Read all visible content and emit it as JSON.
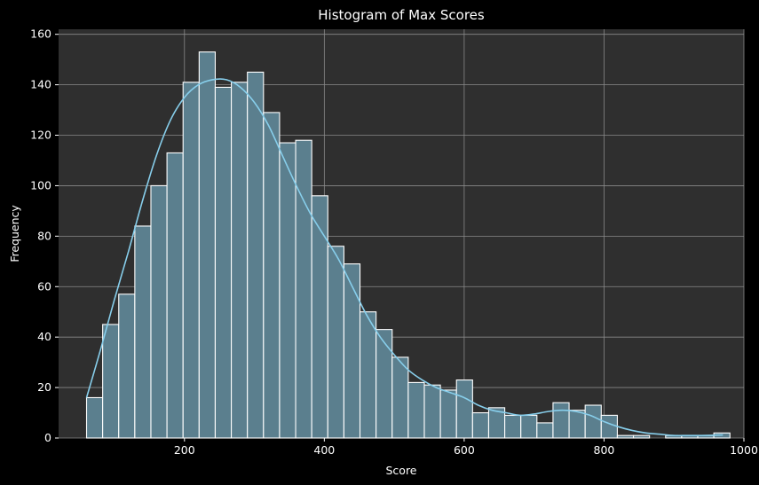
{
  "chart_data": {
    "type": "bar",
    "title": "Histogram of Max Scores",
    "xlabel": "Score",
    "ylabel": "Frequency",
    "xlim": [
      20,
      1000
    ],
    "ylim": [
      0,
      162
    ],
    "x_ticks": [
      200,
      400,
      600,
      800,
      1000
    ],
    "y_ticks": [
      0,
      20,
      40,
      60,
      80,
      100,
      120,
      140,
      160
    ],
    "grid": true,
    "colors": {
      "background": "#000000",
      "plot_area": "#2f2f2f",
      "bar_fill": "#5b7f8e",
      "bar_edge": "#ffffff",
      "kde_line": "#87ceeb",
      "grid": "#8a8a8a",
      "text": "#ffffff"
    },
    "bin_start": 60,
    "bin_width": 23,
    "counts": [
      16,
      45,
      57,
      84,
      100,
      113,
      141,
      153,
      139,
      141,
      145,
      129,
      117,
      118,
      96,
      76,
      69,
      50,
      43,
      32,
      22,
      21,
      19,
      23,
      10,
      12,
      9,
      9,
      6,
      14,
      11,
      13,
      9,
      1,
      1,
      0,
      1,
      1,
      1,
      2
    ],
    "kde": {
      "x": [
        60,
        80,
        100,
        120,
        140,
        160,
        180,
        200,
        220,
        240,
        260,
        280,
        300,
        320,
        340,
        360,
        380,
        400,
        420,
        440,
        460,
        480,
        500,
        520,
        540,
        560,
        580,
        600,
        620,
        640,
        660,
        680,
        700,
        720,
        740,
        760,
        780,
        800,
        820,
        840,
        860,
        880,
        900,
        920,
        940,
        970
      ],
      "y": [
        16,
        35,
        55,
        74,
        94,
        112,
        126,
        135,
        140,
        142,
        142,
        139,
        133,
        124,
        112,
        100,
        89,
        80,
        71,
        60,
        49,
        40,
        33,
        27,
        23,
        20,
        18,
        16,
        13,
        11,
        10,
        9,
        9.5,
        10.5,
        11,
        10.5,
        9,
        6.5,
        4.5,
        3,
        2,
        1.5,
        1,
        1,
        1,
        1.2
      ]
    }
  }
}
